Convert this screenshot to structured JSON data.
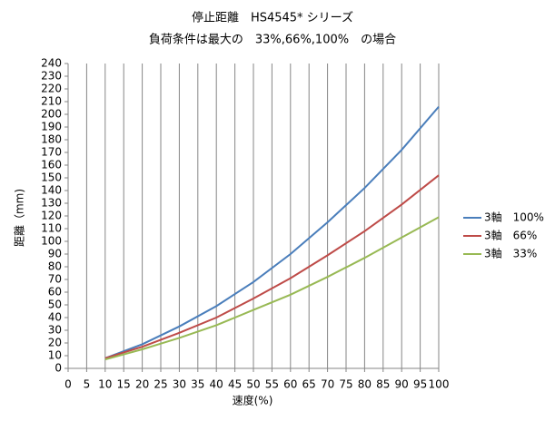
{
  "chart_data": {
    "type": "line",
    "title": "停止距離　HS4545* シリーズ",
    "subtitle": "負荷条件は最大の　33%,66%,100%　の場合",
    "x_label": "速度(%)",
    "y_label": "距離（mm)",
    "x": [
      10,
      20,
      30,
      40,
      50,
      60,
      70,
      80,
      90,
      100
    ],
    "series": [
      {
        "name": "3軸　100%",
        "color": "#4a7ebb",
        "values": [
          8,
          19,
          33,
          49,
          68,
          90,
          115,
          142,
          172,
          206
        ]
      },
      {
        "name": "3軸　66%",
        "color": "#be4b48",
        "values": [
          8,
          17,
          28,
          40,
          55,
          71,
          89,
          108,
          129,
          152
        ]
      },
      {
        "name": "3軸　33%",
        "color": "#98b954",
        "values": [
          7,
          15,
          24,
          34,
          46,
          58,
          72,
          87,
          103,
          119
        ]
      }
    ],
    "xlim": [
      0,
      100
    ],
    "xticks": [
      0,
      5,
      10,
      15,
      20,
      25,
      30,
      35,
      40,
      45,
      50,
      55,
      60,
      65,
      70,
      75,
      80,
      85,
      90,
      95,
      100
    ],
    "ylim": [
      0,
      240
    ],
    "yticks": [
      0,
      10,
      20,
      30,
      40,
      50,
      60,
      70,
      80,
      90,
      100,
      110,
      120,
      130,
      140,
      150,
      160,
      170,
      180,
      190,
      200,
      210,
      220,
      230,
      240
    ],
    "grid": "x",
    "legend": "right"
  }
}
